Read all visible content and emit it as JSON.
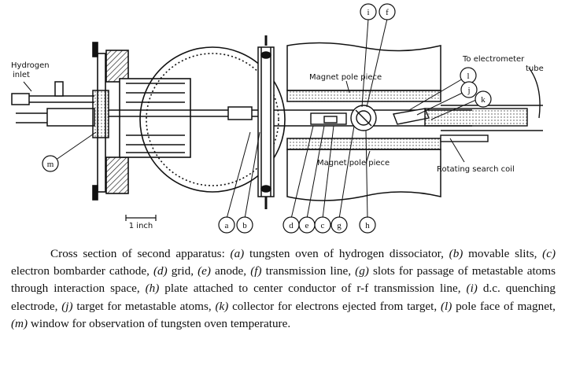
{
  "labels": {
    "hydrogen_line1": "Hydrogen",
    "hydrogen_line2": "inlet",
    "electrometer_line1": "To electrometer",
    "electrometer_line2": "tube",
    "magnet_top": "Magnet pole piece",
    "magnet_bottom": "Magnet pole piece",
    "rotating_coil": "Rotating search coil",
    "scale": "1 inch"
  },
  "callouts": {
    "a": "a",
    "b": "b",
    "c": "c",
    "d": "d",
    "e": "e",
    "f": "f",
    "g": "g",
    "h": "h",
    "i": "i",
    "j": "j",
    "k": "k",
    "l": "l",
    "m": "m"
  },
  "caption": [
    {
      "t": "Cross section of second apparatus: "
    },
    {
      "t": "(a)",
      "i": true
    },
    {
      "t": " tungsten oven of hydrogen dissociator, "
    },
    {
      "t": "(b)",
      "i": true
    },
    {
      "t": " movable slits, "
    },
    {
      "t": "(c)",
      "i": true
    },
    {
      "t": " electron bombarder cathode, "
    },
    {
      "t": "(d)",
      "i": true
    },
    {
      "t": " grid, "
    },
    {
      "t": "(e)",
      "i": true
    },
    {
      "t": " anode, "
    },
    {
      "t": "(f)",
      "i": true
    },
    {
      "t": " transmission line, "
    },
    {
      "t": "(g)",
      "i": true
    },
    {
      "t": " slots for passage of metastable atoms through interaction space, "
    },
    {
      "t": "(h)",
      "i": true
    },
    {
      "t": " plate attached to center conductor of r-f transmission line, "
    },
    {
      "t": "(i)",
      "i": true
    },
    {
      "t": " d.c. quenching electrode, "
    },
    {
      "t": "(j)",
      "i": true
    },
    {
      "t": " target for metastable atoms, "
    },
    {
      "t": "(k)",
      "i": true
    },
    {
      "t": " collector for electrons ejected from target, "
    },
    {
      "t": "(l)",
      "i": true
    },
    {
      "t": " pole face of magnet, "
    },
    {
      "t": "(m)",
      "i": true
    },
    {
      "t": " window for observation of tungsten oven temperature."
    }
  ]
}
